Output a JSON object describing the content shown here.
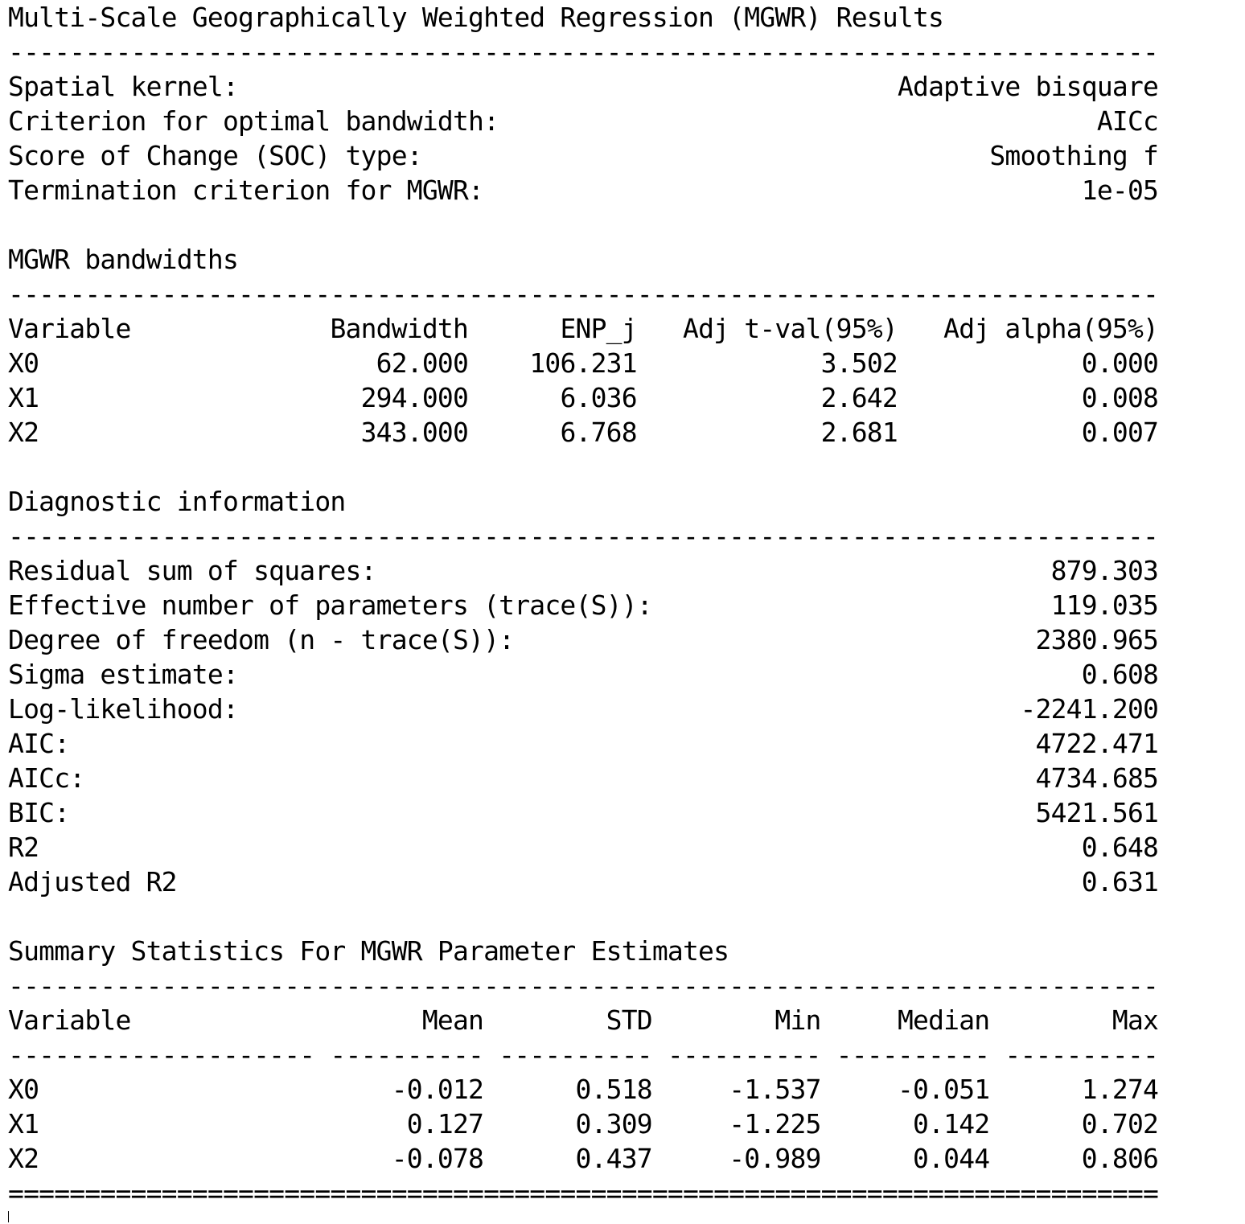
{
  "title": "Multi-Scale Geographically Weighted Regression (MGWR) Results",
  "settings": [
    {
      "label": "Spatial kernel:",
      "value": "Adaptive bisquare"
    },
    {
      "label": "Criterion for optimal bandwidth:",
      "value": "AICc"
    },
    {
      "label": "Score of Change (SOC) type:",
      "value": "Smoothing f"
    },
    {
      "label": "Termination criterion for MGWR:",
      "value": "1e-05"
    }
  ],
  "bandwidths": {
    "heading": "MGWR bandwidths",
    "headers": [
      "Variable",
      "Bandwidth",
      "ENP_j",
      "Adj t-val(95%)",
      "Adj alpha(95%)"
    ],
    "rows": [
      [
        "X0",
        "62.000",
        "106.231",
        "3.502",
        "0.000"
      ],
      [
        "X1",
        "294.000",
        "6.036",
        "2.642",
        "0.008"
      ],
      [
        "X2",
        "343.000",
        "6.768",
        "2.681",
        "0.007"
      ]
    ]
  },
  "diagnostics": {
    "heading": "Diagnostic information",
    "rows": [
      {
        "label": "Residual sum of squares:",
        "value": "879.303"
      },
      {
        "label": "Effective number of parameters (trace(S)):",
        "value": "119.035"
      },
      {
        "label": "Degree of freedom (n - trace(S)):",
        "value": "2380.965"
      },
      {
        "label": "Sigma estimate:",
        "value": "0.608"
      },
      {
        "label": "Log-likelihood:",
        "value": "-2241.200"
      },
      {
        "label": "AIC:",
        "value": "4722.471"
      },
      {
        "label": "AICc:",
        "value": "4734.685"
      },
      {
        "label": "BIC:",
        "value": "5421.561"
      },
      {
        "label": "R2",
        "value": "0.648"
      },
      {
        "label": "Adjusted R2",
        "value": "0.631"
      }
    ]
  },
  "summary": {
    "heading": "Summary Statistics For MGWR Parameter Estimates",
    "headers": [
      "Variable",
      "Mean",
      "STD",
      "Min",
      "Median",
      "Max"
    ],
    "rows": [
      [
        "X0",
        "-0.012",
        "0.518",
        "-1.537",
        "-0.051",
        "1.274"
      ],
      [
        "X1",
        "0.127",
        "0.309",
        "-1.225",
        "0.142",
        "0.702"
      ],
      [
        "X2",
        "-0.078",
        "0.437",
        "-0.989",
        "0.044",
        "0.806"
      ]
    ]
  }
}
